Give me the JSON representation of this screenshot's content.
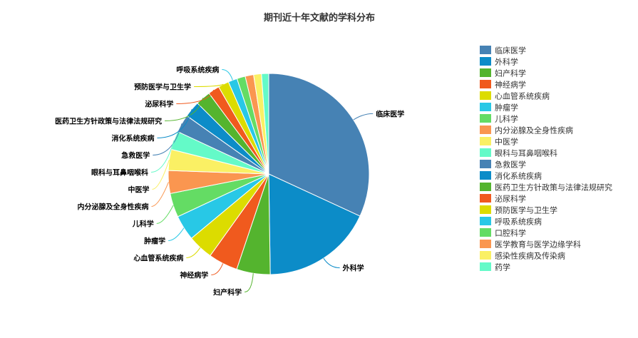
{
  "chart_data": {
    "type": "pie",
    "title": "期刊近十年文献的学科分布",
    "legend_position": "right",
    "slices": [
      {
        "label": "临床医学",
        "value": 33.0,
        "color": "#4682B4"
      },
      {
        "label": "外科学",
        "value": 18.5,
        "color": "#0C8CC8"
      },
      {
        "label": "妇产科学",
        "value": 5.6,
        "color": "#54B42E"
      },
      {
        "label": "神经病学",
        "value": 4.9,
        "color": "#F05A1E"
      },
      {
        "label": "心血管系统疾病",
        "value": 4.2,
        "color": "#DCDC00"
      },
      {
        "label": "肿瘤学",
        "value": 4.2,
        "color": "#28C8E6"
      },
      {
        "label": "儿科学",
        "value": 4.0,
        "color": "#64DC64"
      },
      {
        "label": "内分泌腺及全身性疾病",
        "value": 3.8,
        "color": "#FA9650"
      },
      {
        "label": "中医学",
        "value": 3.5,
        "color": "#FAF064"
      },
      {
        "label": "眼科与耳鼻咽喉科",
        "value": 3.1,
        "color": "#64FAC8"
      },
      {
        "label": "急救医学",
        "value": 3.0,
        "color": "#4682B4"
      },
      {
        "label": "消化系统疾病",
        "value": 2.7,
        "color": "#0C8CC8"
      },
      {
        "label": "医药卫生方针政策与法律法规研究",
        "value": 2.5,
        "color": "#54B42E"
      },
      {
        "label": "泌尿科学",
        "value": 1.9,
        "color": "#F05A1E"
      },
      {
        "label": "预防医学与卫生学",
        "value": 1.8,
        "color": "#DCDC00"
      },
      {
        "label": "呼吸系统疾病",
        "value": 1.5,
        "color": "#28C8E6"
      },
      {
        "label": "口腔科学",
        "value": 1.4,
        "color": "#64DC64"
      },
      {
        "label": "医学教育与医学边缘学科",
        "value": 1.4,
        "color": "#FA9650"
      },
      {
        "label": "感染性疾病及传染病",
        "value": 1.3,
        "color": "#FAF064"
      },
      {
        "label": "药学",
        "value": 1.2,
        "color": "#64FAC8"
      }
    ],
    "labeled_slices": 16
  }
}
